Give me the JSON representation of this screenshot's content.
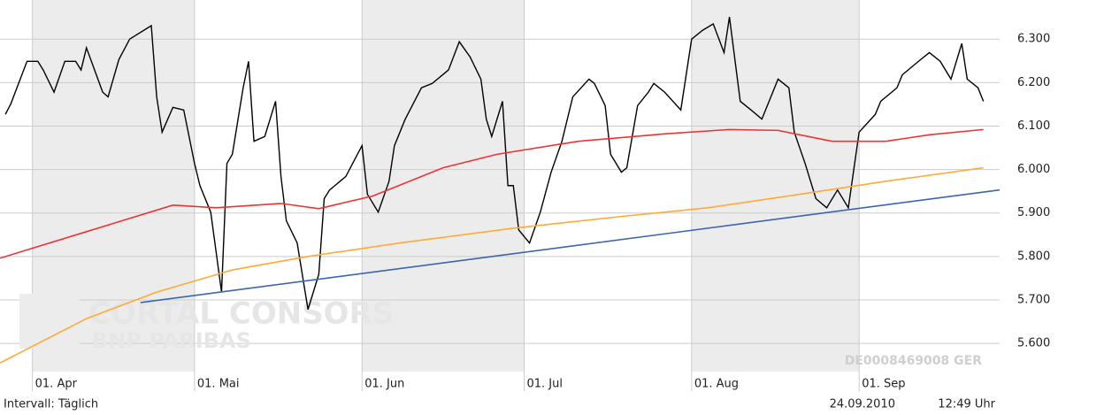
{
  "chart_data": {
    "type": "line",
    "watermark": [
      "CORTAL CONSORS",
      "BNP PARIBAS"
    ],
    "isin": "DE0008469008  GER",
    "interval_label": "Intervall: Täglich",
    "date": "24.09.2010",
    "time": "12:49 Uhr",
    "xlim": [
      "2010-03-26",
      "2010-09-27"
    ],
    "xticks": [
      {
        "value": "2010-04-01",
        "label": "01. Apr"
      },
      {
        "value": "2010-05-01",
        "label": "01. Mai"
      },
      {
        "value": "2010-06-01",
        "label": "01. Jun"
      },
      {
        "value": "2010-07-01",
        "label": "01. Jul"
      },
      {
        "value": "2010-08-01",
        "label": "01. Aug"
      },
      {
        "value": "2010-09-01",
        "label": "01. Sep"
      }
    ],
    "ylim": [
      5.535,
      6.39
    ],
    "yticks": [
      {
        "value": 5.6,
        "label": "5.600"
      },
      {
        "value": 5.7,
        "label": "5.700"
      },
      {
        "value": 5.8,
        "label": "5.800"
      },
      {
        "value": 5.9,
        "label": "5.900"
      },
      {
        "value": 6.0,
        "label": "6.000"
      },
      {
        "value": 6.1,
        "label": "6.100"
      },
      {
        "value": 6.2,
        "label": "6.200"
      },
      {
        "value": 6.3,
        "label": "6.300"
      }
    ],
    "grid": true,
    "shade_alternate_months": true,
    "series": [
      {
        "color": "#000000",
        "step": true,
        "x": [
          "2010-03-27",
          "2010-03-28",
          "2010-03-31",
          "2010-04-02",
          "2010-04-03",
          "2010-04-05",
          "2010-04-07",
          "2010-04-09",
          "2010-04-10",
          "2010-04-11",
          "2010-04-14",
          "2010-04-15",
          "2010-04-17",
          "2010-04-19",
          "2010-04-23",
          "2010-04-24",
          "2010-04-25",
          "2010-04-27",
          "2010-04-29",
          "2010-05-01",
          "2010-05-02",
          "2010-05-04",
          "2010-05-06",
          "2010-05-07",
          "2010-05-08",
          "2010-05-10",
          "2010-05-11",
          "2010-05-12",
          "2010-05-14",
          "2010-05-16",
          "2010-05-17",
          "2010-05-18",
          "2010-05-20",
          "2010-05-22",
          "2010-05-24",
          "2010-05-25",
          "2010-05-26",
          "2010-05-29",
          "2010-06-01",
          "2010-06-02",
          "2010-06-04",
          "2010-06-06",
          "2010-06-07",
          "2010-06-09",
          "2010-06-12",
          "2010-06-14",
          "2010-06-17",
          "2010-06-19",
          "2010-06-21",
          "2010-06-23",
          "2010-06-24",
          "2010-06-25",
          "2010-06-27",
          "2010-06-28",
          "2010-06-29",
          "2010-06-30",
          "2010-07-02",
          "2010-07-04",
          "2010-07-06",
          "2010-07-08",
          "2010-07-10",
          "2010-07-13",
          "2010-07-14",
          "2010-07-16",
          "2010-07-17",
          "2010-07-19",
          "2010-07-20",
          "2010-07-22",
          "2010-07-24",
          "2010-07-25",
          "2010-07-27",
          "2010-07-30",
          "2010-08-01",
          "2010-08-03",
          "2010-08-05",
          "2010-08-07",
          "2010-08-08",
          "2010-08-10",
          "2010-08-12",
          "2010-08-14",
          "2010-08-17",
          "2010-08-19",
          "2010-08-20",
          "2010-08-22",
          "2010-08-24",
          "2010-08-26",
          "2010-08-28",
          "2010-08-30",
          "2010-09-01",
          "2010-09-04",
          "2010-09-05",
          "2010-09-08",
          "2010-09-09",
          "2010-09-12",
          "2010-09-14",
          "2010-09-16",
          "2010-09-18",
          "2010-09-20",
          "2010-09-21",
          "2010-09-23",
          "2010-09-24"
        ],
        "values": [
          6.127,
          6.151,
          6.249,
          6.249,
          6.229,
          6.178,
          6.249,
          6.249,
          6.229,
          6.28,
          6.178,
          6.167,
          6.253,
          6.3,
          6.331,
          6.167,
          6.086,
          6.143,
          6.137,
          6.014,
          5.963,
          5.902,
          5.718,
          6.014,
          6.035,
          6.188,
          6.249,
          6.065,
          6.076,
          6.157,
          5.984,
          5.882,
          5.831,
          5.678,
          5.759,
          5.933,
          5.953,
          5.984,
          6.055,
          5.943,
          5.902,
          5.973,
          6.055,
          6.116,
          6.188,
          6.198,
          6.229,
          6.294,
          6.259,
          6.208,
          6.116,
          6.076,
          6.157,
          5.963,
          5.963,
          5.861,
          5.831,
          5.902,
          5.994,
          6.065,
          6.167,
          6.208,
          6.198,
          6.147,
          6.035,
          5.994,
          6.004,
          6.147,
          6.178,
          6.198,
          6.178,
          6.137,
          6.3,
          6.32,
          6.335,
          6.269,
          6.351,
          6.157,
          6.137,
          6.116,
          6.208,
          6.188,
          6.086,
          6.014,
          5.933,
          5.912,
          5.953,
          5.912,
          6.086,
          6.127,
          6.157,
          6.188,
          6.218,
          6.249,
          6.269,
          6.249,
          6.208,
          6.29,
          6.208,
          6.188,
          6.157
        ]
      },
      {
        "color": "#ee3333",
        "x": [
          "2010-03-26",
          "2010-04-11",
          "2010-04-27",
          "2010-05-05",
          "2010-05-17",
          "2010-05-24",
          "2010-06-03",
          "2010-06-16",
          "2010-06-26",
          "2010-07-11",
          "2010-07-27",
          "2010-08-08",
          "2010-08-17",
          "2010-08-27",
          "2010-09-06",
          "2010-09-14",
          "2010-09-24"
        ],
        "values": [
          5.796,
          5.857,
          5.918,
          5.912,
          5.922,
          5.91,
          5.939,
          6.004,
          6.035,
          6.065,
          6.082,
          6.092,
          6.09,
          6.065,
          6.065,
          6.08,
          6.092
        ]
      },
      {
        "color": "#ffaa33",
        "x": [
          "2010-03-26",
          "2010-04-11",
          "2010-04-24",
          "2010-05-08",
          "2010-05-22",
          "2010-06-08",
          "2010-06-29",
          "2010-07-19",
          "2010-08-04",
          "2010-08-21",
          "2010-09-06",
          "2010-09-24"
        ],
        "values": [
          5.555,
          5.657,
          5.718,
          5.769,
          5.8,
          5.831,
          5.865,
          5.892,
          5.912,
          5.943,
          5.973,
          6.004
        ]
      },
      {
        "color": "#3a66b0",
        "x": [
          "2010-04-21",
          "2010-09-27"
        ],
        "values": [
          5.694,
          5.953
        ]
      }
    ]
  }
}
